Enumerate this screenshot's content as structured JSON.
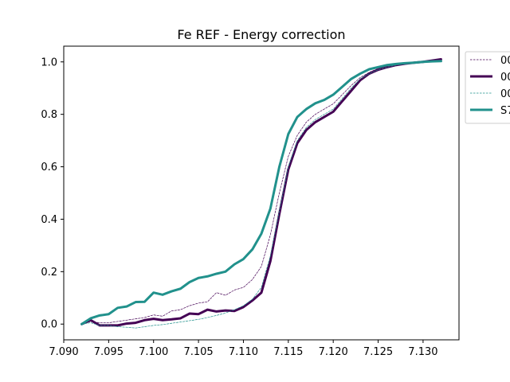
{
  "chart_data": {
    "type": "line",
    "title": "Fe REF - Energy correction",
    "xlabel": "",
    "ylabel": "",
    "xlim": [
      7.09,
      7.134
    ],
    "ylim": [
      -0.06,
      1.06
    ],
    "xticks": [
      7.09,
      7.095,
      7.1,
      7.105,
      7.11,
      7.115,
      7.12,
      7.125,
      7.13
    ],
    "xtick_labels": [
      "7.090",
      "7.095",
      "7.100",
      "7.105",
      "7.110",
      "7.115",
      "7.120",
      "7.125",
      "7.130"
    ],
    "yticks": [
      0.0,
      0.2,
      0.4,
      0.6,
      0.8,
      1.0
    ],
    "ytick_labels": [
      "0.0",
      "0.2",
      "0.4",
      "0.6",
      "0.8",
      "1.0"
    ],
    "grid": false,
    "legend_position": "outside-top-right",
    "x": [
      7.092,
      7.093,
      7.094,
      7.095,
      7.096,
      7.097,
      7.098,
      7.099,
      7.1,
      7.101,
      7.102,
      7.103,
      7.104,
      7.105,
      7.106,
      7.107,
      7.108,
      7.109,
      7.11,
      7.111,
      7.112,
      7.113,
      7.114,
      7.115,
      7.116,
      7.117,
      7.118,
      7.119,
      7.12,
      7.121,
      7.122,
      7.123,
      7.124,
      7.125,
      7.126,
      7.127,
      7.128,
      7.129,
      7.13,
      7.131,
      7.132
    ],
    "series": [
      {
        "name": "00",
        "color": "#440154",
        "style": "dashed-thin",
        "values": [
          0.0,
          0.01,
          0.005,
          0.005,
          0.01,
          0.015,
          0.02,
          0.025,
          0.035,
          0.03,
          0.05,
          0.055,
          0.07,
          0.08,
          0.085,
          0.12,
          0.11,
          0.13,
          0.14,
          0.17,
          0.22,
          0.34,
          0.5,
          0.64,
          0.72,
          0.77,
          0.8,
          0.82,
          0.84,
          0.875,
          0.91,
          0.94,
          0.96,
          0.975,
          0.985,
          0.99,
          0.995,
          0.998,
          1.0,
          1.003,
          1.005
        ]
      },
      {
        "name": "00",
        "color": "#440154",
        "style": "solid-thick",
        "values": [
          0.0,
          0.015,
          -0.005,
          -0.005,
          -0.005,
          0.002,
          0.005,
          0.015,
          0.02,
          0.015,
          0.018,
          0.022,
          0.04,
          0.038,
          0.055,
          0.048,
          0.052,
          0.05,
          0.065,
          0.09,
          0.12,
          0.24,
          0.42,
          0.59,
          0.69,
          0.74,
          0.77,
          0.79,
          0.81,
          0.85,
          0.89,
          0.93,
          0.955,
          0.97,
          0.98,
          0.988,
          0.993,
          0.997,
          1.0,
          1.005,
          1.01
        ]
      },
      {
        "name": "00",
        "color": "#21918c",
        "style": "dashed-thin",
        "values": [
          0.0,
          0.005,
          -0.005,
          -0.005,
          -0.01,
          -0.012,
          -0.015,
          -0.01,
          -0.005,
          -0.002,
          0.003,
          0.008,
          0.013,
          0.018,
          0.025,
          0.033,
          0.042,
          0.055,
          0.07,
          0.095,
          0.14,
          0.26,
          0.43,
          0.6,
          0.7,
          0.75,
          0.78,
          0.8,
          0.82,
          0.86,
          0.9,
          0.935,
          0.955,
          0.97,
          0.98,
          0.988,
          0.993,
          0.996,
          1.0,
          1.003,
          1.006
        ]
      },
      {
        "name": "S7",
        "color": "#21918c",
        "style": "solid-thick",
        "values": [
          0.0,
          0.022,
          0.033,
          0.038,
          0.062,
          0.067,
          0.084,
          0.085,
          0.12,
          0.112,
          0.125,
          0.135,
          0.16,
          0.176,
          0.182,
          0.192,
          0.2,
          0.228,
          0.248,
          0.285,
          0.345,
          0.44,
          0.6,
          0.725,
          0.79,
          0.82,
          0.842,
          0.855,
          0.875,
          0.905,
          0.935,
          0.955,
          0.972,
          0.98,
          0.988,
          0.992,
          0.995,
          0.997,
          1.0,
          1.002,
          1.003
        ]
      }
    ]
  }
}
